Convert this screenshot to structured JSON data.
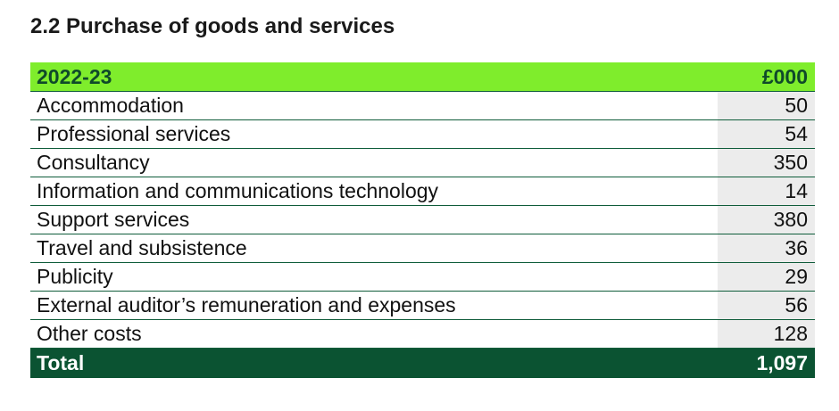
{
  "title": "2.2 Purchase of goods and services",
  "table": {
    "header": {
      "label": "2022-23",
      "unit": "£000"
    },
    "rows": [
      {
        "label": "Accommodation",
        "value": "50"
      },
      {
        "label": "Professional services",
        "value": "54"
      },
      {
        "label": "Consultancy",
        "value": "350"
      },
      {
        "label": "Information and communications technology",
        "value": "14"
      },
      {
        "label": "Support services",
        "value": "380"
      },
      {
        "label": "Travel and subsistence",
        "value": "36"
      },
      {
        "label": "Publicity",
        "value": "29"
      },
      {
        "label": "External auditor’s remuneration and expenses",
        "value": "56"
      },
      {
        "label": "Other costs",
        "value": "128"
      }
    ],
    "total": {
      "label": "Total",
      "value": "1,097"
    }
  },
  "colors": {
    "header_bg": "#7fed2c",
    "header_text": "#0f4a2a",
    "total_bg": "#0b5332",
    "value_cell_bg": "#ececec",
    "row_rule": "#0f5c3a"
  }
}
